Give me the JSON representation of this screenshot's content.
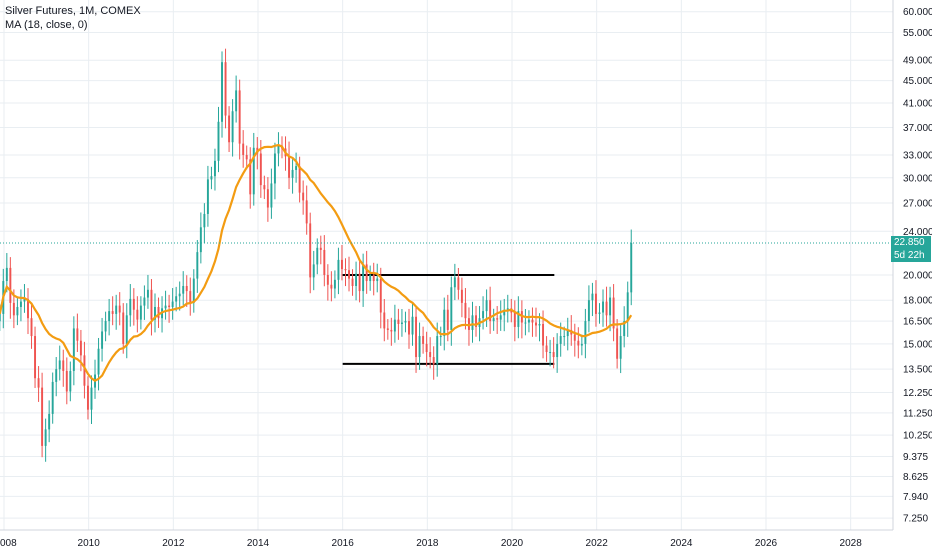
{
  "legend": {
    "symbol": "Silver Futures, 1M, COMEX",
    "indicator": "MA (18, close, 0)"
  },
  "price_tag": {
    "last_price": "22.850",
    "countdown": "5d 22h"
  },
  "colors": {
    "up": "#26a69a",
    "down": "#ef5350",
    "ma": "#f39c12",
    "grid": "#e9eef2",
    "last_price_line": "#26a69a"
  },
  "chart_data": {
    "type": "candlestick",
    "interval": "1M",
    "y_scale": "log",
    "ylim": [
      6.9,
      63.0
    ],
    "xlim": [
      2008.0,
      2029.0
    ],
    "grid": true,
    "y_ticks": [
      "60.000",
      "55.000",
      "49.000",
      "45.000",
      "41.000",
      "37.000",
      "33.000",
      "30.000",
      "27.000",
      "24.000",
      "20.000",
      "18.000",
      "16.500",
      "15.000",
      "13.500",
      "12.250",
      "11.250",
      "10.250",
      "9.375",
      "8.625",
      "7.940",
      "7.250"
    ],
    "x_ticks": [
      "008",
      "2010",
      "2012",
      "2014",
      "2016",
      "2018",
      "2020",
      "2022",
      "2024",
      "2026",
      "2028"
    ],
    "last_price": 22.85,
    "horizontal_lines": [
      {
        "from": 2016.0,
        "to": 2021.0,
        "value": 20.0
      },
      {
        "from": 2016.0,
        "to": 2021.0,
        "value": 13.8
      }
    ],
    "candles_close": [
      17.0,
      19.5,
      20.6,
      17.8,
      16.9,
      17.5,
      17.9,
      18.1,
      16.7,
      15.5,
      13.0,
      12.5,
      9.8,
      10.5,
      11.2,
      12.8,
      13.5,
      14.0,
      13.4,
      12.3,
      13.4,
      16.0,
      15.2,
      14.3,
      12.6,
      11.4,
      12.5,
      13.2,
      14.7,
      15.8,
      16.5,
      17.2,
      17.0,
      17.6,
      17.1,
      15.0,
      16.9,
      18.1,
      17.3,
      16.6,
      17.6,
      18.2,
      18.8,
      16.6,
      17.5,
      16.7,
      17.4,
      17.6,
      17.5,
      17.9,
      18.3,
      18.5,
      19.1,
      18.7,
      17.8,
      19.7,
      22.0,
      24.4,
      25.8,
      29.8,
      30.2,
      32.2,
      37.9,
      48.6,
      38.9,
      34.8,
      39.6,
      43.2,
      34.6,
      33.0,
      32.4,
      28.0,
      34.0,
      33.2,
      29.1,
      28.6,
      26.5,
      29.3,
      33.2,
      34.3,
      33.9,
      32.8,
      30.0,
      31.0,
      31.5,
      28.2,
      27.3,
      24.8,
      19.8,
      20.9,
      22.4,
      22.2,
      20.0,
      19.2,
      18.9,
      19.6,
      21.3,
      20.5,
      20.4,
      19.7,
      19.1,
      20.1,
      18.7,
      20.9,
      19.5,
      20.0,
      19.5,
      19.7,
      17.1,
      16.0,
      15.9,
      15.8,
      16.6,
      16.3,
      16.4,
      16.5,
      15.6,
      16.8,
      14.2,
      15.5,
      15.0,
      14.5,
      14.2,
      13.8,
      15.5,
      15.5,
      17.3,
      15.9,
      19.0,
      19.8,
      18.8,
      17.8,
      16.7,
      15.9,
      16.9,
      16.1,
      16.7,
      17.2,
      18.0,
      16.5,
      16.7,
      16.6,
      16.9,
      17.3,
      17.4,
      17.1,
      16.1,
      17.2,
      16.4,
      16.4,
      16.6,
      16.4,
      16.2,
      16.3,
      14.9,
      14.5,
      14.5,
      14.2,
      15.0,
      15.5,
      15.5,
      15.9,
      15.6,
      15.2,
      14.9,
      15.0,
      16.5,
      18.0,
      18.5,
      17.0,
      17.1,
      17.9,
      16.9,
      18.2,
      16.0,
      14.1,
      15.5,
      16.5,
      18.6,
      22.85
    ]
  }
}
